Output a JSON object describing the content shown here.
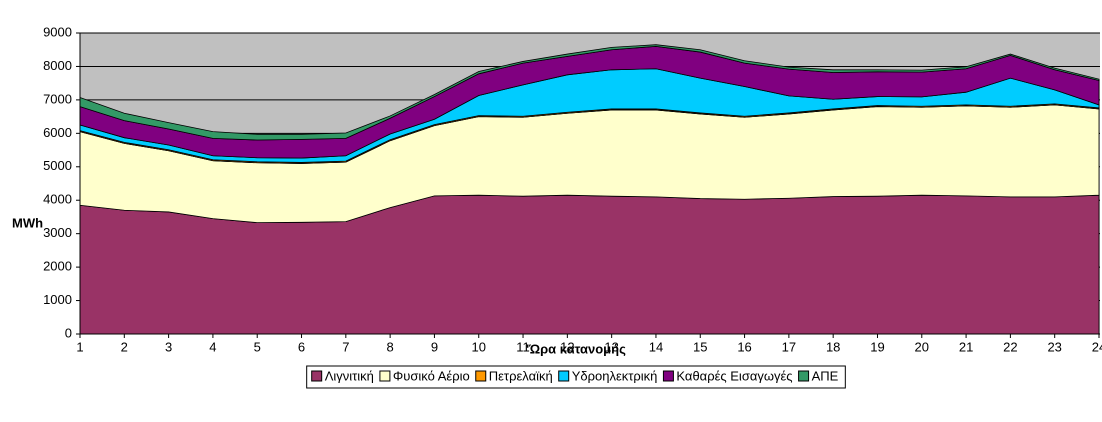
{
  "chart_data": {
    "type": "stacked_area",
    "x_label": "'Ώρα κατανομής",
    "y_label": "MWh",
    "categories": [
      "1",
      "2",
      "3",
      "4",
      "5",
      "6",
      "7",
      "8",
      "9",
      "10",
      "11",
      "12",
      "13",
      "14",
      "15",
      "16",
      "17",
      "18",
      "19",
      "20",
      "21",
      "22",
      "23",
      "24"
    ],
    "ylim": [
      0,
      9000
    ],
    "yticks": [
      0,
      1000,
      2000,
      3000,
      4000,
      5000,
      6000,
      7000,
      8000,
      9000
    ],
    "grid": true,
    "legend": "bottom",
    "series": [
      {
        "name": "Λιγνιτική",
        "color": "#993366",
        "values": [
          3850,
          3700,
          3650,
          3450,
          3330,
          3340,
          3360,
          3780,
          4130,
          4150,
          4120,
          4150,
          4120,
          4100,
          4050,
          4030,
          4060,
          4110,
          4120,
          4150,
          4130,
          4100,
          4100,
          4150
        ]
      },
      {
        "name": "Φυσικό Αέριο",
        "color": "#FFFFCC",
        "values": [
          2200,
          2000,
          1830,
          1730,
          1790,
          1760,
          1780,
          2000,
          2100,
          2350,
          2360,
          2450,
          2580,
          2600,
          2530,
          2450,
          2520,
          2590,
          2680,
          2630,
          2690,
          2680,
          2750,
          2580
        ]
      },
      {
        "name": "Πετρελαϊκή",
        "color": "#FF9900",
        "values": [
          30,
          30,
          30,
          30,
          30,
          30,
          30,
          30,
          30,
          30,
          30,
          30,
          30,
          30,
          30,
          30,
          30,
          30,
          30,
          30,
          30,
          30,
          30,
          30
        ]
      },
      {
        "name": "Υδροηλεκτρική",
        "color": "#00CCFF",
        "values": [
          170,
          140,
          140,
          120,
          120,
          130,
          160,
          170,
          160,
          600,
          940,
          1120,
          1170,
          1200,
          1040,
          890,
          510,
          290,
          270,
          280,
          380,
          840,
          420,
          90
        ]
      },
      {
        "name": "Καθαρές Εισαγωγές",
        "color": "#800080",
        "values": [
          550,
          510,
          480,
          520,
          530,
          560,
          520,
          470,
          680,
          650,
          650,
          550,
          600,
          670,
          780,
          700,
          800,
          800,
          740,
          740,
          700,
          680,
          600,
          730
        ]
      },
      {
        "name": "ΑΠΕ",
        "color": "#339966",
        "values": [
          270,
          220,
          190,
          200,
          170,
          150,
          160,
          70,
          60,
          70,
          50,
          70,
          70,
          50,
          70,
          70,
          60,
          80,
          60,
          60,
          60,
          40,
          50,
          40
        ]
      }
    ]
  }
}
